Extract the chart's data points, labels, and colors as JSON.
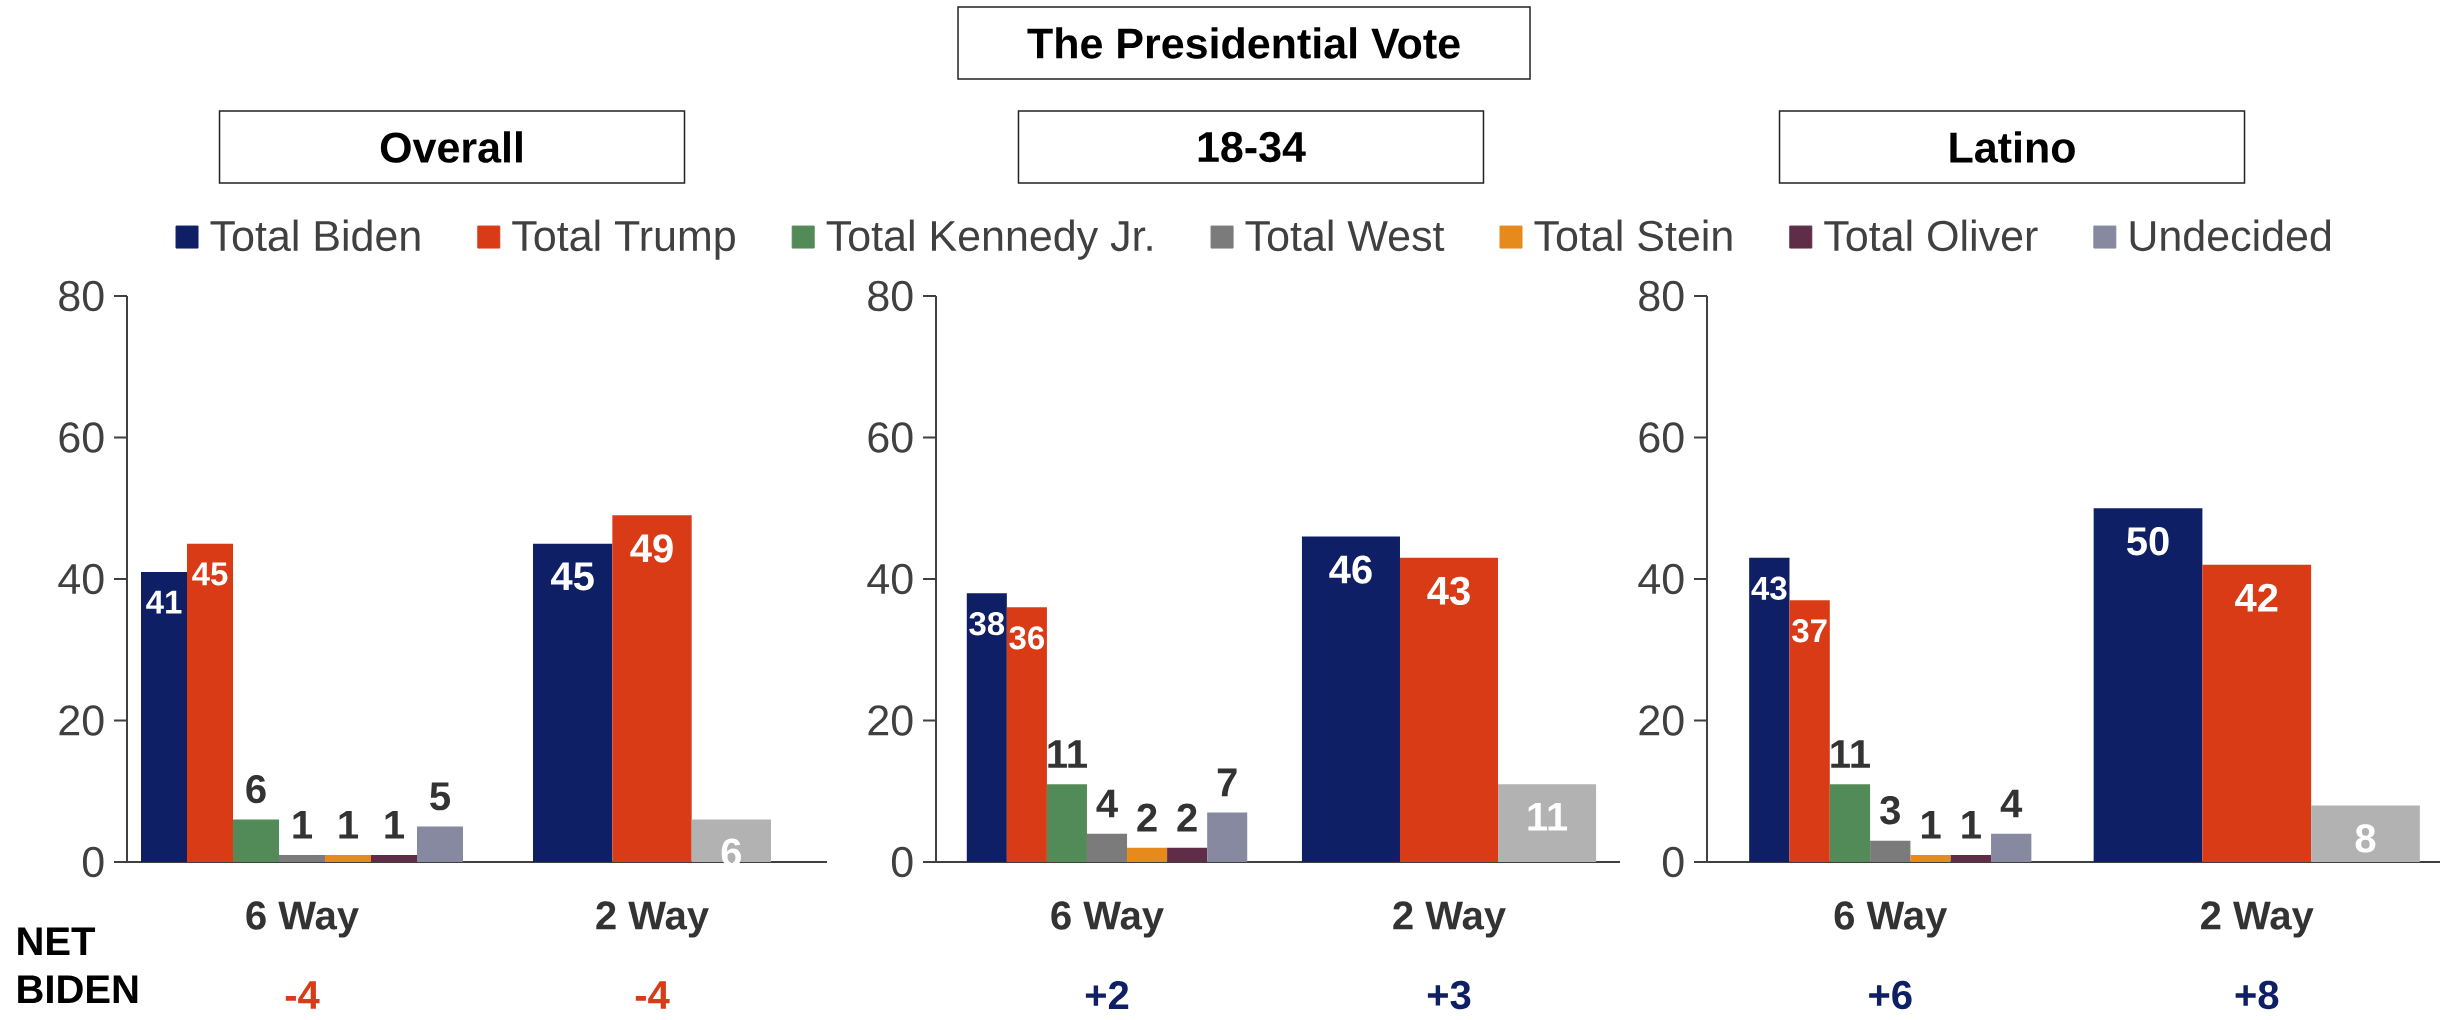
{
  "chart_data": [
    {
      "type": "other",
      "title": "The Presidential Vote"
    },
    {
      "type": "bar",
      "title": "Overall",
      "categories": [
        "6 Way",
        "2 Way"
      ],
      "series": [
        {
          "name": "Total Biden",
          "color": "#0f1f66",
          "values": [
            41,
            45
          ]
        },
        {
          "name": "Total Trump",
          "color": "#d83b16",
          "values": [
            45,
            49
          ]
        },
        {
          "name": "Total Kennedy Jr.",
          "color": "#538b58",
          "values": [
            6,
            null
          ]
        },
        {
          "name": "Total West",
          "color": "#7b7b7b",
          "values": [
            1,
            null
          ]
        },
        {
          "name": "Total Stein",
          "color": "#e68a1c",
          "values": [
            1,
            null
          ]
        },
        {
          "name": "Total Oliver",
          "color": "#5f2d47",
          "values": [
            1,
            null
          ]
        },
        {
          "name": "Undecided",
          "color": "#8689a0",
          "colors": [
            "#8689a0",
            "#b2b2b2"
          ],
          "values": [
            5,
            6
          ]
        }
      ],
      "ylim": [
        0,
        80
      ],
      "yticks": [
        0,
        20,
        40,
        60,
        80
      ],
      "legend": "top",
      "data_labels": true,
      "annotations": [
        "NET BIDEN",
        "-4",
        "-4"
      ]
    },
    {
      "type": "bar",
      "title": "18-34",
      "categories": [
        "6 Way",
        "2 Way"
      ],
      "series": [
        {
          "color": "#0f1f66",
          "values": [
            38,
            46
          ]
        },
        {
          "color": "#d83b16",
          "values": [
            36,
            43
          ]
        },
        {
          "color": "#538b58",
          "values": [
            11,
            null
          ]
        },
        {
          "color": "#7b7b7b",
          "values": [
            4,
            null
          ]
        },
        {
          "color": "#e68a1c",
          "values": [
            2,
            null
          ]
        },
        {
          "color": "#5f2d47",
          "values": [
            2,
            null
          ]
        },
        {
          "colors": [
            "#8689a0",
            "#b2b2b2"
          ],
          "values": [
            7,
            11
          ]
        }
      ],
      "ylim": [
        0,
        80
      ],
      "yticks": [
        0,
        20,
        40,
        60,
        80
      ],
      "data_labels": true,
      "annotations": [
        "+2",
        "+3"
      ]
    },
    {
      "type": "bar",
      "title": "Latino",
      "categories": [
        "6 Way",
        "2 Way"
      ],
      "series": [
        {
          "color": "#0f1f66",
          "values": [
            43,
            50
          ]
        },
        {
          "color": "#d83b16",
          "values": [
            37,
            42
          ]
        },
        {
          "color": "#538b58",
          "values": [
            11,
            null
          ]
        },
        {
          "color": "#7b7b7b",
          "values": [
            3,
            null
          ]
        },
        {
          "color": "#e68a1c",
          "values": [
            1,
            null
          ]
        },
        {
          "color": "#5f2d47",
          "values": [
            1,
            null
          ]
        },
        {
          "colors": [
            "#8689a0",
            "#b2b2b2"
          ],
          "values": [
            4,
            8
          ]
        }
      ],
      "ylim": [
        0,
        80
      ],
      "yticks": [
        0,
        20,
        40,
        60,
        80
      ],
      "data_labels": true,
      "annotations": [
        "+6",
        "+8"
      ]
    }
  ]
}
